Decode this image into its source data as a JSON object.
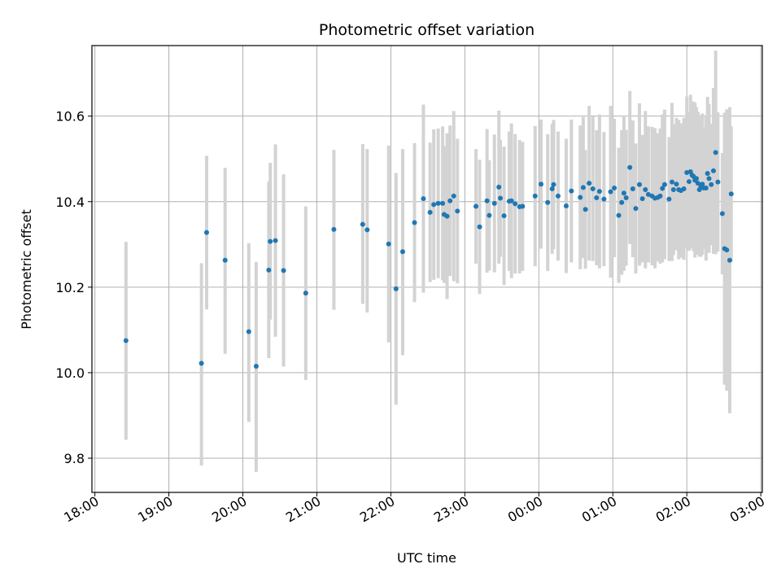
{
  "chart_data": {
    "type": "scatter",
    "title": "Photometric offset variation",
    "xlabel": "UTC time",
    "ylabel": "Photometric offset",
    "x_unit": "hours UTC (18:00 = 18, 03:00 next day = 27)",
    "xlim": [
      17.96,
      27.02
    ],
    "ylim": [
      9.72,
      10.765
    ],
    "x_ticks": [
      18,
      19,
      20,
      21,
      22,
      23,
      24,
      25,
      26,
      27
    ],
    "x_tick_labels": [
      "18:00",
      "19:00",
      "20:00",
      "21:00",
      "22:00",
      "23:00",
      "00:00",
      "01:00",
      "02:00",
      "03:00"
    ],
    "y_ticks": [
      9.8,
      10.0,
      10.2,
      10.4,
      10.6
    ],
    "y_tick_labels": [
      "9.8",
      "10.0",
      "10.2",
      "10.4",
      "10.6"
    ],
    "grid": true,
    "colors": {
      "point": "#1f77b4",
      "errorbar": "#d3d3d3",
      "grid": "#b0b0b0"
    },
    "series": [
      {
        "x": [
          18.42,
          19.44,
          19.51,
          19.76,
          20.08,
          20.18,
          20.35,
          20.37,
          20.44,
          20.55,
          20.85,
          21.23,
          21.62,
          21.68,
          21.97,
          22.07,
          22.16,
          22.32,
          22.44,
          22.53,
          22.58,
          22.64,
          22.7,
          22.72,
          22.76,
          22.8,
          22.85,
          22.9,
          23.15,
          23.2,
          23.3,
          23.33,
          23.4,
          23.46,
          23.48,
          23.53,
          23.6,
          23.63,
          23.68,
          23.74,
          23.78,
          23.95,
          24.03,
          24.12,
          24.18,
          24.2,
          24.26,
          24.37,
          24.44,
          24.56,
          24.6,
          24.63,
          24.68,
          24.73,
          24.78,
          24.82,
          24.88,
          24.97,
          25.02,
          25.08,
          25.12,
          25.15,
          25.18,
          25.23,
          25.27,
          25.31,
          25.36,
          25.4,
          25.44,
          25.48,
          25.53,
          25.57,
          25.61,
          25.64,
          25.67,
          25.7,
          25.76,
          25.8,
          25.82,
          25.86,
          25.89,
          25.92,
          25.96,
          26.0,
          26.03,
          26.05,
          26.07,
          26.09,
          26.11,
          26.13,
          26.15,
          26.17,
          26.19,
          26.21,
          26.23,
          26.26,
          26.28,
          26.3,
          26.33,
          26.36,
          26.39,
          26.42,
          26.48,
          26.51,
          26.54,
          26.58,
          26.6
        ],
        "y": [
          10.075,
          10.022,
          10.328,
          10.263,
          10.096,
          10.015,
          10.24,
          10.307,
          10.309,
          10.239,
          10.186,
          10.335,
          10.347,
          10.334,
          10.301,
          10.196,
          10.283,
          10.351,
          10.407,
          10.375,
          10.393,
          10.396,
          10.396,
          10.37,
          10.366,
          10.402,
          10.413,
          10.378,
          10.389,
          10.341,
          10.402,
          10.368,
          10.396,
          10.434,
          10.408,
          10.367,
          10.401,
          10.402,
          10.395,
          10.388,
          10.389,
          10.413,
          10.441,
          10.398,
          10.43,
          10.44,
          10.413,
          10.39,
          10.425,
          10.41,
          10.433,
          10.382,
          10.443,
          10.43,
          10.409,
          10.424,
          10.406,
          10.423,
          10.432,
          10.368,
          10.398,
          10.42,
          10.409,
          10.48,
          10.43,
          10.384,
          10.44,
          10.407,
          10.428,
          10.417,
          10.413,
          10.408,
          10.41,
          10.413,
          10.431,
          10.44,
          10.406,
          10.446,
          10.428,
          10.441,
          10.428,
          10.426,
          10.43,
          10.468,
          10.447,
          10.47,
          10.462,
          10.459,
          10.45,
          10.454,
          10.443,
          10.428,
          10.435,
          10.441,
          10.432,
          10.432,
          10.466,
          10.454,
          10.44,
          10.472,
          10.515,
          10.446,
          10.372,
          10.29,
          10.287,
          10.263,
          10.418
        ],
        "err_low": [
          9.843,
          9.783,
          10.148,
          10.044,
          9.885,
          9.768,
          10.034,
          10.124,
          10.084,
          10.014,
          9.983,
          10.147,
          10.161,
          10.141,
          10.071,
          9.925,
          10.041,
          10.165,
          10.187,
          10.212,
          10.217,
          10.221,
          10.216,
          10.21,
          10.172,
          10.226,
          10.214,
          10.209,
          10.255,
          10.184,
          10.234,
          10.239,
          10.235,
          10.255,
          10.271,
          10.205,
          10.238,
          10.221,
          10.232,
          10.232,
          10.238,
          10.249,
          10.29,
          10.238,
          10.278,
          10.289,
          10.262,
          10.233,
          10.258,
          10.242,
          10.268,
          10.243,
          10.262,
          10.261,
          10.251,
          10.244,
          10.249,
          10.222,
          10.27,
          10.21,
          10.229,
          10.238,
          10.25,
          10.301,
          10.27,
          10.232,
          10.25,
          10.258,
          10.244,
          10.258,
          10.251,
          10.244,
          10.26,
          10.255,
          10.258,
          10.265,
          10.261,
          10.261,
          10.275,
          10.286,
          10.265,
          10.269,
          10.264,
          10.29,
          10.285,
          10.29,
          10.29,
          10.284,
          10.269,
          10.287,
          10.276,
          10.271,
          10.271,
          10.276,
          10.29,
          10.262,
          10.287,
          10.28,
          10.298,
          10.278,
          10.277,
          10.283,
          10.23,
          9.972,
          9.958,
          9.905,
          10.26
        ],
        "err_high": [
          10.306,
          10.256,
          10.507,
          10.479,
          10.303,
          10.259,
          10.447,
          10.491,
          10.534,
          10.464,
          10.389,
          10.521,
          10.535,
          10.523,
          10.531,
          10.467,
          10.523,
          10.537,
          10.627,
          10.538,
          10.569,
          10.571,
          10.576,
          10.53,
          10.56,
          10.578,
          10.612,
          10.547,
          10.523,
          10.498,
          10.57,
          10.497,
          10.557,
          10.613,
          10.545,
          10.529,
          10.564,
          10.583,
          10.558,
          10.544,
          10.54,
          10.577,
          10.592,
          10.558,
          10.582,
          10.591,
          10.564,
          10.547,
          10.592,
          10.578,
          10.598,
          10.521,
          10.624,
          10.599,
          10.567,
          10.604,
          10.563,
          10.624,
          10.594,
          10.526,
          10.567,
          10.602,
          10.568,
          10.659,
          10.59,
          10.536,
          10.63,
          10.556,
          10.612,
          10.576,
          10.575,
          10.572,
          10.56,
          10.571,
          10.604,
          10.615,
          10.551,
          10.631,
          10.581,
          10.596,
          10.591,
          10.583,
          10.596,
          10.646,
          10.609,
          10.65,
          10.634,
          10.634,
          10.631,
          10.621,
          10.61,
          10.585,
          10.599,
          10.606,
          10.574,
          10.602,
          10.645,
          10.628,
          10.582,
          10.666,
          10.753,
          10.609,
          10.514,
          10.608,
          10.616,
          10.621,
          10.576
        ]
      }
    ]
  }
}
